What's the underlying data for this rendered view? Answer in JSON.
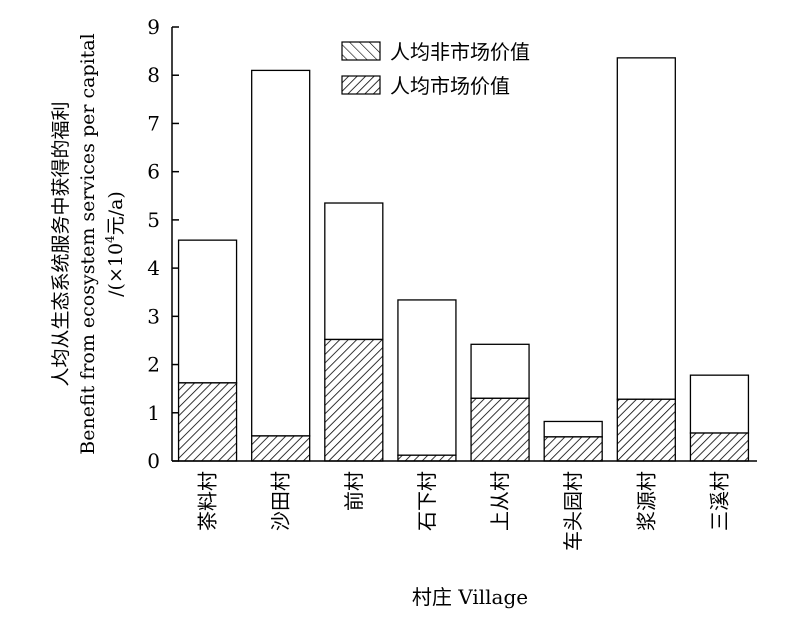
{
  "chart_data": {
    "type": "bar",
    "stacked": true,
    "categories": [
      "茶料村",
      "沙田村",
      "前村",
      "石下村",
      "上从村",
      "车头园村",
      "浆源村",
      "三溪村"
    ],
    "series": [
      {
        "name": "人均市场价值",
        "values": [
          1.62,
          0.52,
          2.52,
          0.12,
          1.3,
          0.5,
          1.28,
          0.58
        ],
        "pattern": "dense-hatch"
      },
      {
        "name": "人均非市场价值",
        "values": [
          2.96,
          7.58,
          2.83,
          3.22,
          1.12,
          0.32,
          7.08,
          1.2
        ],
        "pattern": "sparse-hatch"
      }
    ],
    "totals": [
      4.58,
      8.1,
      5.35,
      3.34,
      2.42,
      0.82,
      8.36,
      1.78
    ],
    "ylim": [
      0,
      9
    ],
    "yticks": [
      "0",
      "1",
      "2",
      "3",
      "4",
      "5",
      "6",
      "7",
      "8",
      "9"
    ],
    "ylabel_lines": [
      "人均从生态系统服务中获得的福利",
      "Benefit from ecosystem services per capital",
      "/(×10",
      "4",
      "元/a)"
    ],
    "xlabel": "村庄 Village",
    "legend": [
      "人均非市场价值",
      "人均市场价值"
    ],
    "legend_position": "top-right",
    "grid": false
  }
}
